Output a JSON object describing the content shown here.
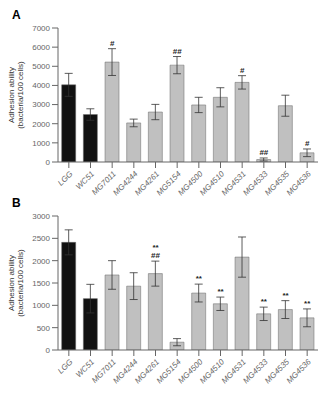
{
  "chart_data": [
    {
      "type": "bar",
      "title": "A",
      "ylabel": "Adhesion ability\n(bacteria/100 cells)",
      "categories": [
        "LGG",
        "WC51",
        "MG7011",
        "MG4244",
        "MG4261",
        "MG5154",
        "MG4500",
        "MG4510",
        "MG4531",
        "MG4533",
        "MG4535",
        "MG4536"
      ],
      "values": [
        4030,
        2480,
        5220,
        2040,
        2610,
        5060,
        2980,
        3380,
        4160,
        130,
        2940,
        480
      ],
      "errors": [
        600,
        300,
        700,
        200,
        400,
        450,
        400,
        500,
        350,
        80,
        550,
        200
      ],
      "colors": [
        "#111111",
        "#111111",
        "#c0c0c0",
        "#c0c0c0",
        "#c0c0c0",
        "#c0c0c0",
        "#c0c0c0",
        "#c0c0c0",
        "#c0c0c0",
        "#c0c0c0",
        "#c0c0c0",
        "#c0c0c0"
      ],
      "annotations": [
        {
          "category": "MG7011",
          "text": "#"
        },
        {
          "category": "MG5154",
          "text": "##"
        },
        {
          "category": "MG4531",
          "text": "#"
        },
        {
          "category": "MG4533",
          "text": "##"
        },
        {
          "category": "MG4536",
          "text": "#"
        }
      ],
      "ylim": [
        0,
        7000
      ],
      "yticks": [
        0,
        1000,
        2000,
        3000,
        4000,
        5000,
        6000,
        7000
      ],
      "grid": false
    },
    {
      "type": "bar",
      "title": "B",
      "ylabel": "Adhesion ability\n(bacteria/100 cells)",
      "categories": [
        "LGG",
        "WC51",
        "MG7011",
        "MG4244",
        "MG4261",
        "MG5154",
        "MG4500",
        "MG4510",
        "MG4531",
        "MG4533",
        "MG4535",
        "MG4536"
      ],
      "values": [
        2410,
        1150,
        1680,
        1430,
        1710,
        175,
        1275,
        1035,
        2080,
        810,
        905,
        720
      ],
      "errors": [
        280,
        320,
        320,
        300,
        280,
        80,
        200,
        150,
        450,
        150,
        200,
        200
      ],
      "colors": [
        "#111111",
        "#111111",
        "#c0c0c0",
        "#c0c0c0",
        "#c0c0c0",
        "#c0c0c0",
        "#c0c0c0",
        "#c0c0c0",
        "#c0c0c0",
        "#c0c0c0",
        "#c0c0c0",
        "#c0c0c0"
      ],
      "annotations": [
        {
          "category": "MG4261",
          "text": "##"
        },
        {
          "category": "MG4261",
          "text": "**"
        },
        {
          "category": "MG4500",
          "text": "**"
        },
        {
          "category": "MG4510",
          "text": "**"
        },
        {
          "category": "MG4533",
          "text": "**"
        },
        {
          "category": "MG4535",
          "text": "**"
        },
        {
          "category": "MG4536",
          "text": "**"
        }
      ],
      "ylim": [
        0,
        3000
      ],
      "yticks": [
        0,
        500,
        1000,
        1500,
        2000,
        2500,
        3000
      ],
      "grid": false
    }
  ]
}
